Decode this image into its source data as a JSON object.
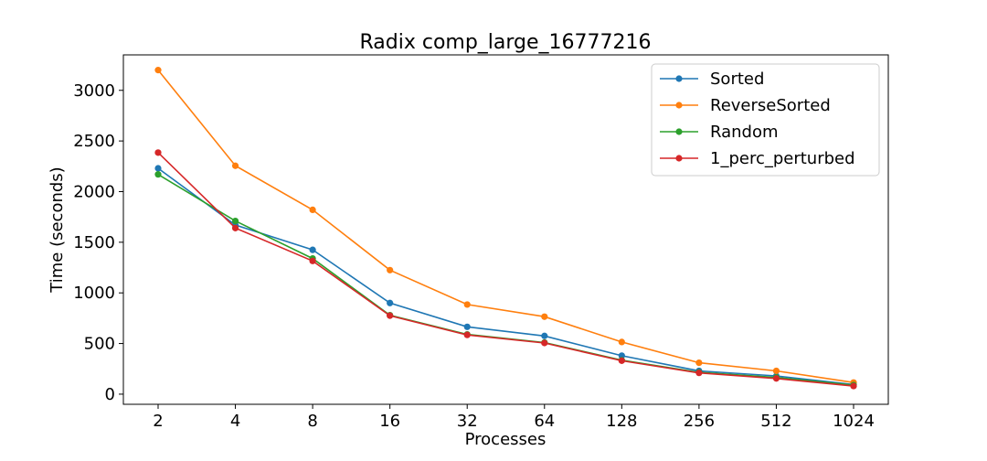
{
  "chart_data": {
    "type": "line",
    "title": "Radix comp_large_16777216",
    "xlabel": "Processes",
    "ylabel": "Time (seconds)",
    "categories": [
      "2",
      "4",
      "8",
      "16",
      "32",
      "64",
      "128",
      "256",
      "512",
      "1024"
    ],
    "yticks": [
      0,
      500,
      1000,
      1500,
      2000,
      2500,
      3000
    ],
    "ylim": [
      -100,
      3350
    ],
    "grid": false,
    "legend_position": "top-right",
    "series": [
      {
        "name": "Sorted",
        "color": "#1f77b4",
        "values": [
          2230,
          1670,
          1425,
          900,
          665,
          575,
          380,
          230,
          180,
          95
        ]
      },
      {
        "name": "ReverseSorted",
        "color": "#ff7f0e",
        "values": [
          3200,
          2255,
          1820,
          1225,
          885,
          765,
          515,
          310,
          230,
          115
        ]
      },
      {
        "name": "Random",
        "color": "#2ca02c",
        "values": [
          2170,
          1710,
          1340,
          780,
          590,
          510,
          335,
          215,
          165,
          90
        ]
      },
      {
        "name": "1_perc_perturbed",
        "color": "#d62728",
        "values": [
          2385,
          1640,
          1315,
          775,
          585,
          505,
          330,
          210,
          155,
          80
        ]
      }
    ]
  }
}
